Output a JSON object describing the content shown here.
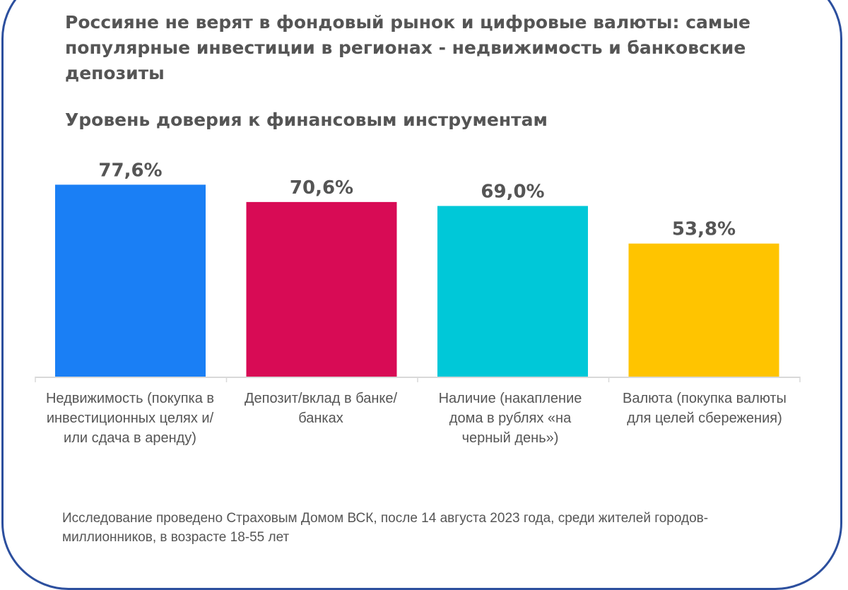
{
  "chart_data": {
    "type": "bar",
    "title": "Россияне не верят в фондовый рынок и цифровые валюты: самые популярные инвестиции в регионах - недвижимость и  банковские депозиты",
    "subtitle": "Уровень доверия к финансовым инструментам",
    "categories": [
      "Недвижимость (покупка в инвестиционных целях и/или сдача в аренду)",
      "Депозит/вклад в банке/банках",
      "Наличие (накапление дома в рублях «на черный день»)",
      "Валюта (покупка валюты для целей сбережения)"
    ],
    "values": [
      77.6,
      70.6,
      69.0,
      53.8
    ],
    "data_labels": [
      "77,6%",
      "70,6%",
      "69,0%",
      "53,8%"
    ],
    "colors": [
      "#1a7ff5",
      "#d80b55",
      "#00c8d8",
      "#ffc400"
    ],
    "ylim": [
      0,
      100
    ],
    "grid": false,
    "legend": "none",
    "note": "Исследование проведено Страховым Домом ВСК, после 14 августа 2023 года, среди жителей городов-миллионников, в возрасте 18-55 лет"
  }
}
